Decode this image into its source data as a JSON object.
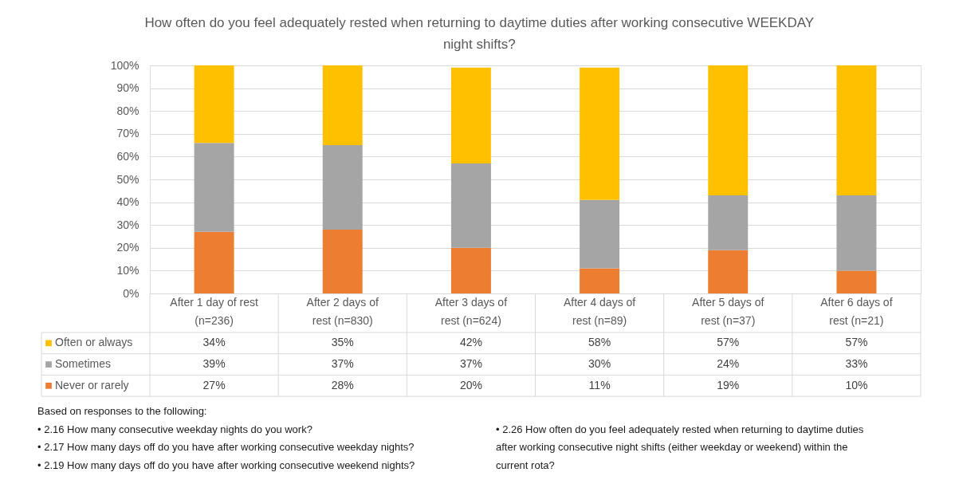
{
  "chart_data": {
    "type": "bar",
    "title": "How often do you feel adequately rested when returning to daytime duties after working consecutive WEEKDAY night shifts?",
    "categories": [
      "After 1 day of rest (n=236)",
      "After 2 days of rest (n=830)",
      "After 3 days of rest (n=624)",
      "After 4 days of rest (n=89)",
      "After 5 days of rest (n=37)",
      "After 6 days of rest (n=21)"
    ],
    "series": [
      {
        "name": "Never or rarely",
        "color": "#ed7d31",
        "values": [
          27,
          28,
          20,
          11,
          19,
          10
        ],
        "value_labels": [
          "27%",
          "28%",
          "20%",
          "11%",
          "19%",
          "10%"
        ]
      },
      {
        "name": "Sometimes",
        "color": "#a5a5a5",
        "values": [
          39,
          37,
          37,
          30,
          24,
          33
        ],
        "value_labels": [
          "39%",
          "37%",
          "37%",
          "30%",
          "24%",
          "33%"
        ]
      },
      {
        "name": "Often or always",
        "color": "#ffc000",
        "values": [
          34,
          35,
          42,
          58,
          57,
          57
        ],
        "value_labels": [
          "34%",
          "35%",
          "42%",
          "58%",
          "57%",
          "57%"
        ]
      }
    ],
    "stacked": true,
    "ylim": [
      0,
      100
    ],
    "yticks": [
      {
        "value": 0,
        "label": "0%"
      },
      {
        "value": 10,
        "label": "10%"
      },
      {
        "value": 20,
        "label": "20%"
      },
      {
        "value": 30,
        "label": "30%"
      },
      {
        "value": 40,
        "label": "40%"
      },
      {
        "value": 50,
        "label": "50%"
      },
      {
        "value": 60,
        "label": "60%"
      },
      {
        "value": 70,
        "label": "70%"
      },
      {
        "value": 80,
        "label": "80%"
      },
      {
        "value": 90,
        "label": "90%"
      },
      {
        "value": 100,
        "label": "100%"
      }
    ],
    "grid": "y",
    "legend": "bottom",
    "annotations": [
      "Based on responses to the following:",
      "• 2.16 How many consecutive weekday nights do you work?",
      "• 2.17 How many days off do you have after working consecutive weekday nights?",
      "• 2.19 How many days off do you have after working consecutive weekend nights?",
      "• 2.26 How often do you feel adequately rested when returning to daytime duties after working consecutive night shifts (either weekday or weekend) within the current rota?"
    ]
  }
}
